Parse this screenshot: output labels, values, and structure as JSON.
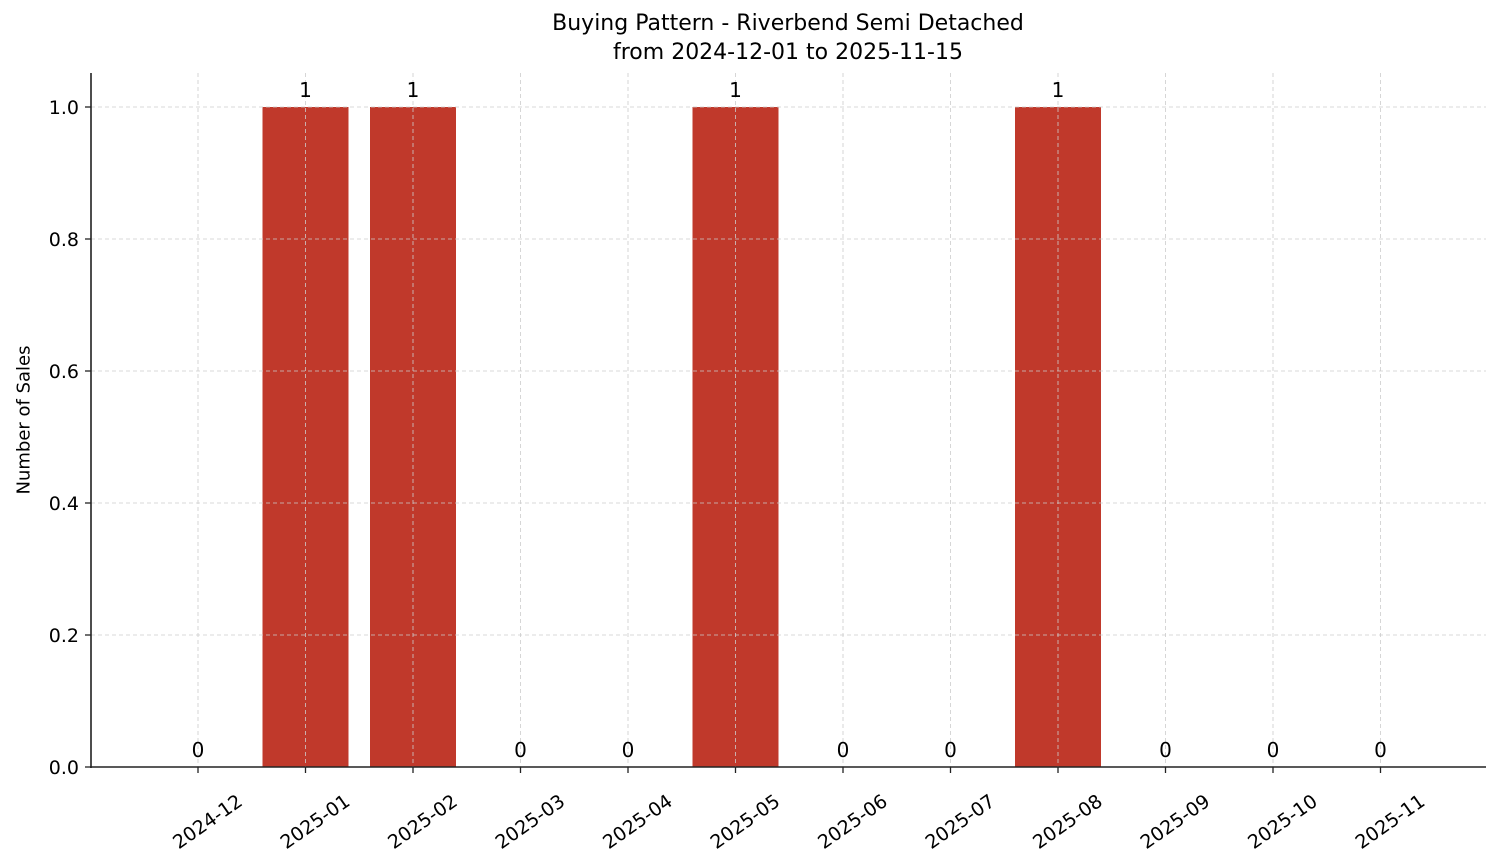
{
  "chart_data": {
    "type": "bar",
    "title": "Buying Pattern - Riverbend Semi Detached",
    "subtitle": "from 2024-12-01 to 2025-11-15",
    "xlabel": "",
    "ylabel": "Number of Sales",
    "categories": [
      "2024-12",
      "2025-01",
      "2025-02",
      "2025-03",
      "2025-04",
      "2025-05",
      "2025-06",
      "2025-07",
      "2025-08",
      "2025-09",
      "2025-10",
      "2025-11"
    ],
    "values": [
      0,
      1,
      1,
      0,
      0,
      1,
      0,
      0,
      1,
      0,
      0,
      0
    ],
    "data_labels": [
      "0",
      "1",
      "1",
      "0",
      "0",
      "1",
      "0",
      "0",
      "1",
      "0",
      "0",
      "0"
    ],
    "ylim": [
      0,
      1.05
    ],
    "yticks": [
      0.0,
      0.2,
      0.4,
      0.6,
      0.8,
      1.0
    ],
    "ytick_labels": [
      "0.0",
      "0.2",
      "0.4",
      "0.6",
      "0.8",
      "1.0"
    ],
    "grid": true,
    "grid_style": "dashed",
    "legend": null,
    "bar_color": "#c0392b",
    "xtick_rotation": -35
  }
}
